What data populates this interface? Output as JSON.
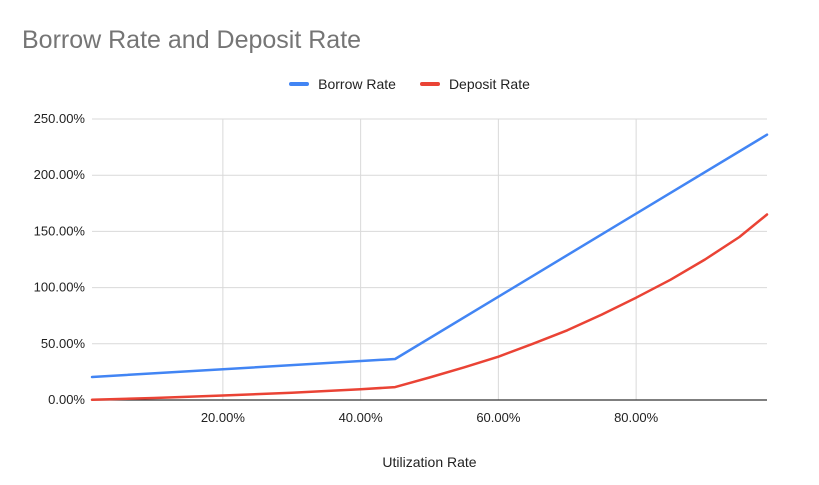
{
  "chart_data": {
    "type": "line",
    "title": "Borrow Rate and Deposit Rate",
    "xlabel": "Utilization Rate",
    "ylabel": "",
    "xlim": [
      0.01,
      0.99
    ],
    "ylim": [
      0,
      2.5
    ],
    "x_ticks": [
      0.2,
      0.4,
      0.6,
      0.8
    ],
    "x_tick_labels": [
      "20.00%",
      "40.00%",
      "60.00%",
      "80.00%"
    ],
    "y_ticks": [
      0,
      0.5,
      1.0,
      1.5,
      2.0,
      2.5
    ],
    "y_tick_labels": [
      "0.00%",
      "50.00%",
      "100.00%",
      "150.00%",
      "200.00%",
      "250.00%"
    ],
    "grid": true,
    "legend_position": "top",
    "series": [
      {
        "name": "Borrow Rate",
        "color": "#4285f4",
        "x": [
          0.01,
          0.45,
          0.99
        ],
        "y": [
          0.205,
          0.365,
          2.36
        ]
      },
      {
        "name": "Deposit Rate",
        "color": "#ea4335",
        "x": [
          0.01,
          0.1,
          0.2,
          0.3,
          0.4,
          0.45,
          0.5,
          0.55,
          0.6,
          0.65,
          0.7,
          0.75,
          0.8,
          0.85,
          0.9,
          0.95,
          0.99
        ],
        "y": [
          0.002,
          0.018,
          0.04,
          0.065,
          0.095,
          0.115,
          0.2,
          0.29,
          0.385,
          0.5,
          0.62,
          0.76,
          0.91,
          1.07,
          1.25,
          1.45,
          1.65
        ]
      }
    ]
  }
}
